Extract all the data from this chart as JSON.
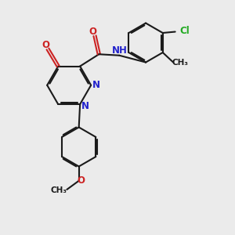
{
  "bg_color": "#ebebeb",
  "bond_color": "#1a1a1a",
  "N_color": "#2222cc",
  "O_color": "#cc2222",
  "Cl_color": "#22aa22",
  "line_width": 1.5,
  "dbo": 0.055,
  "xlim": [
    0,
    10
  ],
  "ylim": [
    0,
    10
  ]
}
